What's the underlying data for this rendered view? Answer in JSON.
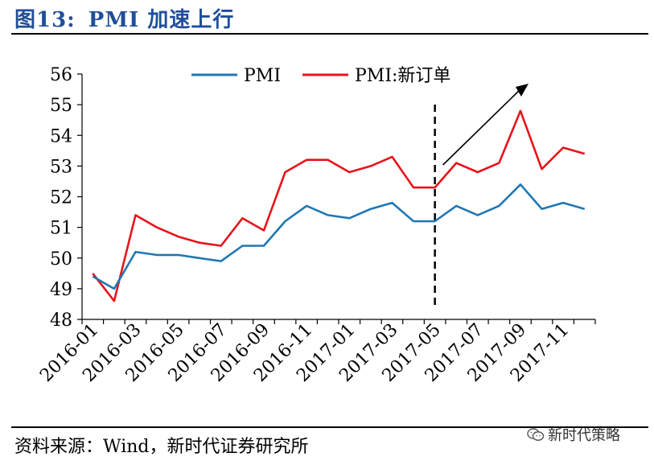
{
  "header": {
    "figure_number": "图13:",
    "title_text": "PMI 加速上行"
  },
  "footer": {
    "source": "资料来源：Wind，新时代证券研究所",
    "watermark": "新时代策略"
  },
  "chart_data": {
    "type": "line",
    "title": "PMI 加速上行",
    "x": [
      "2016-01",
      "2016-02",
      "2016-03",
      "2016-04",
      "2016-05",
      "2016-06",
      "2016-07",
      "2016-08",
      "2016-09",
      "2016-10",
      "2016-11",
      "2016-12",
      "2017-01",
      "2017-02",
      "2017-03",
      "2017-04",
      "2017-05",
      "2017-06",
      "2017-07",
      "2017-08",
      "2017-09",
      "2017-10",
      "2017-11",
      "2017-12"
    ],
    "x_tick_labels": [
      "2016-01",
      "2016-03",
      "2016-05",
      "2016-07",
      "2016-09",
      "2016-11",
      "2017-01",
      "2017-03",
      "2017-05",
      "2017-07",
      "2017-09",
      "2017-11"
    ],
    "ylim": [
      48,
      56
    ],
    "y_ticks": [
      48,
      49,
      50,
      51,
      52,
      53,
      54,
      55,
      56
    ],
    "grid": false,
    "legend_position": "top",
    "series": [
      {
        "name": "PMI",
        "color": "#1F77B4",
        "values": [
          49.4,
          49.0,
          50.2,
          50.1,
          50.1,
          50.0,
          49.9,
          50.4,
          50.4,
          51.2,
          51.7,
          51.4,
          51.3,
          51.6,
          51.8,
          51.2,
          51.2,
          51.7,
          51.4,
          51.7,
          52.4,
          51.6,
          51.8,
          51.6
        ]
      },
      {
        "name": "PMI:新订单",
        "color": "#E8131B",
        "values": [
          49.5,
          48.6,
          51.4,
          51.0,
          50.7,
          50.5,
          50.4,
          51.3,
          50.9,
          52.8,
          53.2,
          53.2,
          52.8,
          53.0,
          53.3,
          52.3,
          52.3,
          53.1,
          52.8,
          53.1,
          54.8,
          52.9,
          53.6,
          53.4
        ]
      }
    ],
    "annotations": [
      {
        "type": "vertical-dashed-line",
        "x": "2017-05"
      },
      {
        "type": "arrow",
        "direction": "up-right",
        "from_x": "2017-05",
        "to_x": "2017-09"
      }
    ]
  }
}
